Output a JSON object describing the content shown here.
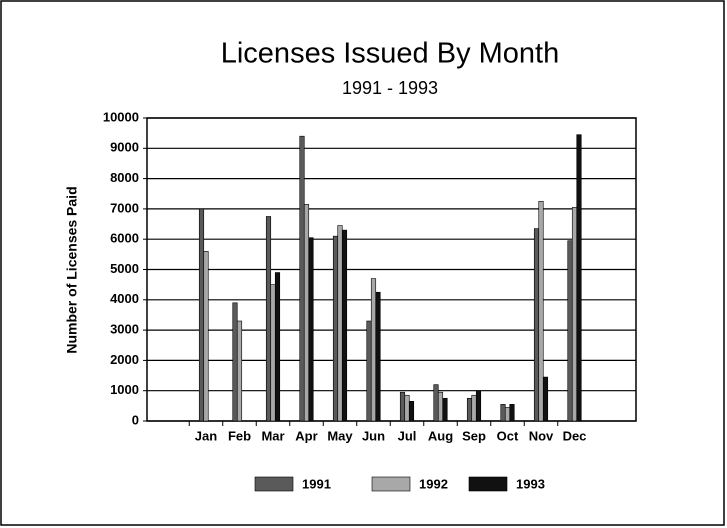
{
  "chart_data": {
    "type": "bar",
    "title": "Licenses Issued By Month",
    "subtitle": "1991 - 1993",
    "y_label": "Number of Licenses Paid",
    "categories": [
      "Jan",
      "Feb",
      "Mar",
      "Apr",
      "May",
      "Jun",
      "Jul",
      "Aug",
      "Sep",
      "Oct",
      "Nov",
      "Dec"
    ],
    "series": [
      {
        "name": "1991",
        "color": "#5a5a5a",
        "values": [
          7000,
          3900,
          6750,
          9400,
          6100,
          3300,
          950,
          1200,
          750,
          550,
          6350,
          5950
        ]
      },
      {
        "name": "1992",
        "color": "#a8a8a8",
        "values": [
          5600,
          3300,
          4500,
          7150,
          6450,
          4700,
          850,
          950,
          850,
          450,
          7250,
          7050
        ]
      },
      {
        "name": "1993",
        "color": "#111111",
        "values": [
          null,
          null,
          4900,
          6050,
          6300,
          4250,
          650,
          750,
          1000,
          550,
          1450,
          9450
        ]
      }
    ],
    "ylim": [
      0,
      10000
    ],
    "yticks": [
      0,
      1000,
      2000,
      3000,
      4000,
      5000,
      6000,
      7000,
      8000,
      9000,
      10000
    ],
    "grid": true
  }
}
